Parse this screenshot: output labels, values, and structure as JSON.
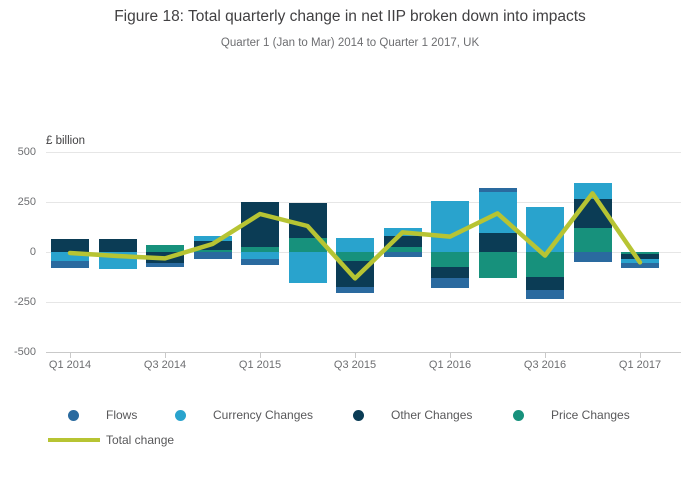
{
  "title": "Figure 18: Total quarterly change in net IIP broken down into impacts",
  "subtitle": "Quarter 1 (Jan to Mar) 2014 to Quarter 1 2017, UK",
  "y_axis": {
    "unit_label": "£ billion",
    "tick_values": [
      500,
      250,
      0,
      -250,
      -500
    ],
    "tick_labels": [
      "500",
      "250",
      "0",
      "-250",
      "-500"
    ]
  },
  "x_axis": {
    "tick_labels": [
      "Q1 2014",
      "Q3 2014",
      "Q1 2015",
      "Q3 2015",
      "Q1 2016",
      "Q3 2016",
      "Q1 2017"
    ]
  },
  "legend": {
    "items": [
      {
        "label": "Flows",
        "key": "flows"
      },
      {
        "label": "Currency Changes",
        "key": "currency"
      },
      {
        "label": "Other Changes",
        "key": "other"
      },
      {
        "label": "Price Changes",
        "key": "price"
      }
    ],
    "line_item": {
      "label": "Total change",
      "key": "total"
    }
  },
  "colors": {
    "flows": "#2a6a9f",
    "currency": "#29a3cd",
    "other": "#0b3c55",
    "price": "#17917c",
    "total_line": "#b7c433",
    "gridline": "#e6e6e6",
    "axis_line": "#c9c9c9",
    "title_text": "#414042",
    "muted_text": "#6d6e71"
  },
  "chart_data": {
    "type": "bar",
    "subtype": "stacked-column-with-line",
    "title": "Figure 18: Total quarterly change in net IIP broken down into impacts",
    "subtitle": "Quarter 1 (Jan to Mar) 2014 to Quarter 1 2017, UK",
    "ylabel": "£ billion",
    "ylim": [
      -500,
      500
    ],
    "grid": true,
    "legend_position": "bottom",
    "categories": [
      "Q1 2014",
      "Q2 2014",
      "Q3 2014",
      "Q4 2014",
      "Q1 2015",
      "Q2 2015",
      "Q3 2015",
      "Q4 2015",
      "Q1 2016",
      "Q2 2016",
      "Q3 2016",
      "Q4 2016",
      "Q1 2017"
    ],
    "series": [
      {
        "name": "Flows",
        "key": "flows",
        "values": [
          -39,
          0,
          -24,
          -37,
          -30,
          0,
          -34,
          -23,
          -54,
          20,
          -45,
          -48,
          -24
        ]
      },
      {
        "name": "Currency Changes",
        "key": "currency",
        "values": [
          -43,
          -86,
          0,
          23,
          -37,
          -157,
          68,
          36,
          255,
          209,
          227,
          78,
          -23
        ]
      },
      {
        "name": "Other Changes",
        "key": "other",
        "values": [
          63,
          66,
          -53,
          47,
          221,
          175,
          -128,
          55,
          -55,
          93,
          -63,
          147,
          -23
        ]
      },
      {
        "name": "Price Changes",
        "key": "price",
        "values": [
          0,
          0,
          35,
          10,
          27,
          72,
          -45,
          27,
          -73,
          -128,
          -127,
          118,
          -10
        ]
      }
    ],
    "line_series": {
      "name": "Total change",
      "key": "total",
      "values": [
        -5,
        -20,
        -32,
        40,
        190,
        130,
        -132,
        98,
        77,
        193,
        -18,
        293,
        -52
      ]
    }
  }
}
